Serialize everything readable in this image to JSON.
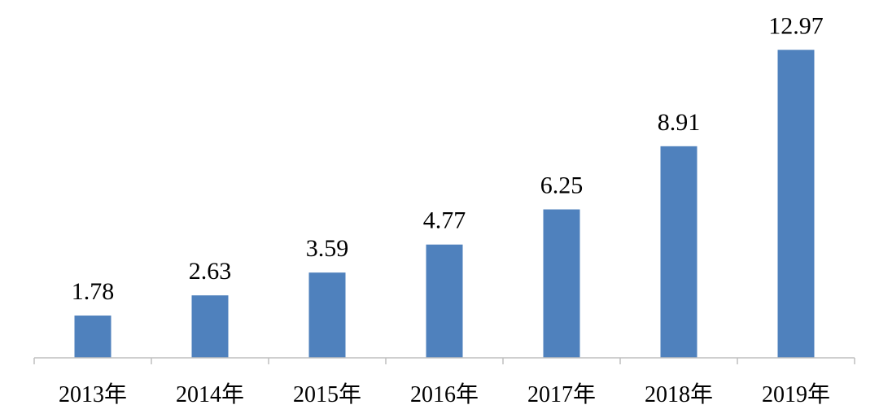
{
  "chart_data": {
    "type": "bar",
    "title": "",
    "xlabel": "",
    "ylabel": "",
    "categories": [
      "2013年",
      "2014年",
      "2015年",
      "2016年",
      "2017年",
      "2018年",
      "2019年"
    ],
    "values": [
      1.78,
      2.63,
      3.59,
      4.77,
      6.25,
      8.91,
      12.97
    ],
    "data_labels": [
      "1.78",
      "2.63",
      "3.59",
      "4.77",
      "6.25",
      "8.91",
      "12.97"
    ],
    "ylim": [
      0,
      14
    ],
    "grid": false,
    "legend": "none",
    "bar_color": "#4f81bd",
    "axis_color": "#bfbfbf"
  }
}
